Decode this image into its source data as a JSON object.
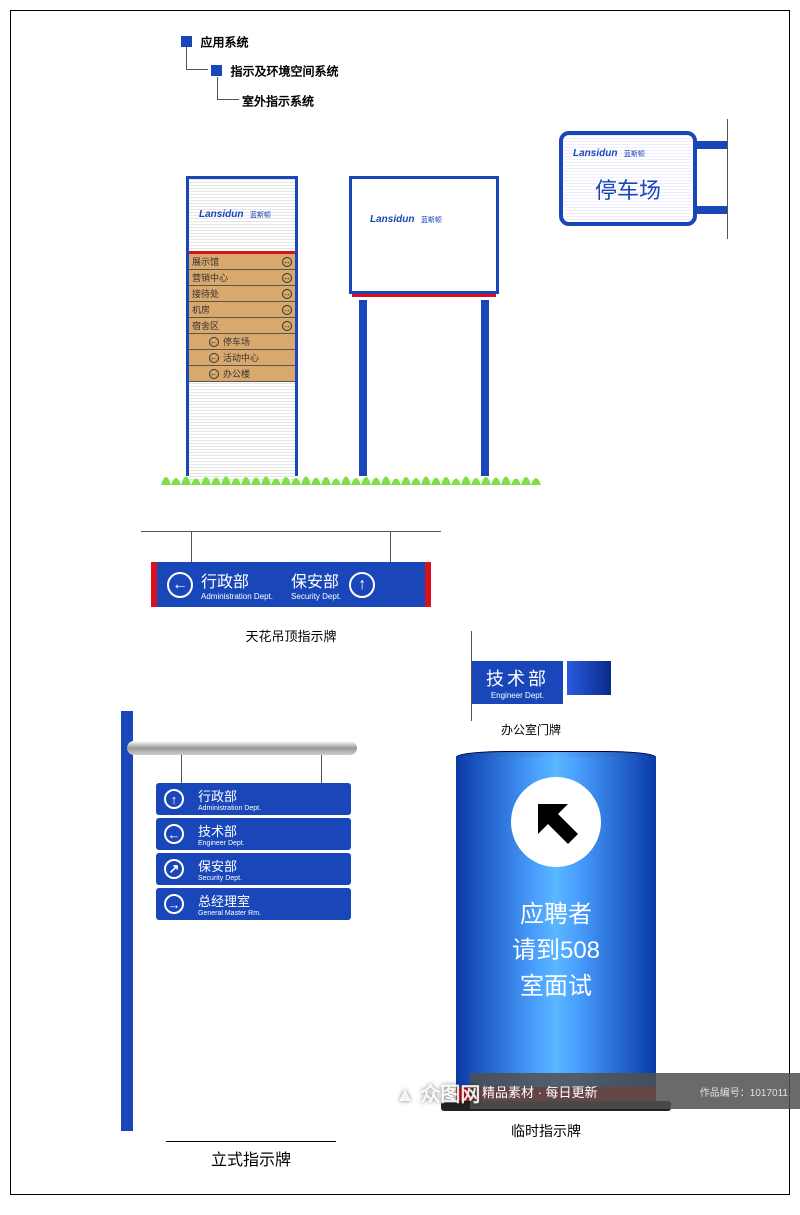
{
  "colors": {
    "blue": "#1946b8",
    "blue_bright": "#2a5be0",
    "blue_grad1": "#0a3aa8",
    "blue_grad2": "#4aa0ff",
    "red": "#d8111a",
    "tan": "#d9a86c",
    "green1": "#6ade3a",
    "green2": "#b8f07a",
    "gray": "#888"
  },
  "breadcrumb": {
    "lvl1": "应用系统",
    "lvl2": "指示及环境空间系统",
    "lvl3": "室外指示系统"
  },
  "logo_en": "Lansidun",
  "logo_cn": "蓝斯顿",
  "pylon1": {
    "rows": [
      {
        "t": "展示馆",
        "a": "↔",
        "pos": "r"
      },
      {
        "t": "营销中心",
        "a": "↔",
        "pos": "r"
      },
      {
        "t": "接待处",
        "a": "→",
        "pos": "r"
      },
      {
        "t": "机房",
        "a": "→",
        "pos": "r"
      },
      {
        "t": "宿舍区",
        "a": "→",
        "pos": "r"
      },
      {
        "t": "停车场",
        "a": "←",
        "pos": "l",
        "indent": true
      },
      {
        "t": "活动中心",
        "a": "←",
        "pos": "l",
        "indent": true
      },
      {
        "t": "办公楼",
        "a": "←",
        "pos": "l",
        "indent": true
      }
    ]
  },
  "parking_label": "停车场",
  "ceiling": {
    "left": {
      "cn": "行政部",
      "en": "Administration Dept."
    },
    "right": {
      "cn": "保安部",
      "en": "Security Dept."
    },
    "caption": "天花吊顶指示牌"
  },
  "door": {
    "cn": "技术部",
    "en": "Engineer Dept.",
    "caption": "办公室门牌"
  },
  "standing": {
    "slats": [
      {
        "a": "↑",
        "cn": "行政部",
        "en": "Administration Dept."
      },
      {
        "a": "←",
        "cn": "技术部",
        "en": "Engineer Dept."
      },
      {
        "a": "↗",
        "cn": "保安部",
        "en": "Security Dept."
      },
      {
        "a": "→",
        "cn": "总经理室",
        "en": "General Master Rm."
      }
    ],
    "caption": "立式指示牌"
  },
  "cylinder": {
    "line1": "应聘者",
    "line2": "请到508",
    "line3": "室面试",
    "caption": "临时指示牌"
  },
  "watermark": {
    "brand": "众图网",
    "tag": "精品素材 · 每日更新",
    "id": "作品编号：1017011"
  }
}
